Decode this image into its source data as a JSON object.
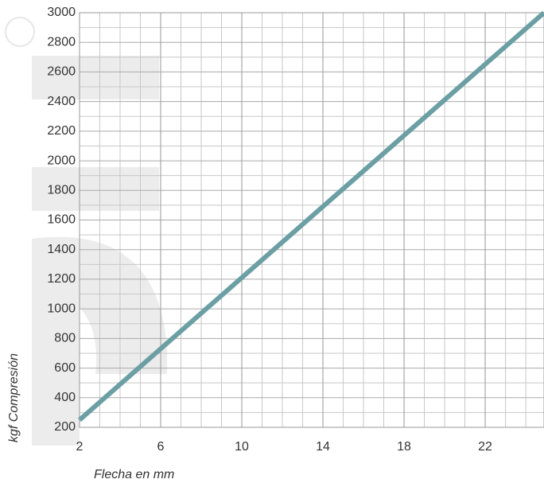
{
  "chart_data": {
    "type": "line",
    "x_label": "Flecha en mm",
    "y_label": "kgf Compresión",
    "series": [
      {
        "name": null,
        "color": "#6c9fa4",
        "x": [
          2,
          24.9
        ],
        "values": [
          250,
          3000
        ]
      }
    ],
    "xlim": [
      2,
      24.9
    ],
    "xticks": [
      2,
      6,
      10,
      14,
      18,
      22
    ],
    "ylim": [
      200,
      3000
    ],
    "yticks": [
      200,
      400,
      600,
      800,
      1000,
      1200,
      1400,
      1600,
      1800,
      2000,
      2200,
      2400,
      2600,
      2800,
      3000
    ],
    "grid": true
  }
}
